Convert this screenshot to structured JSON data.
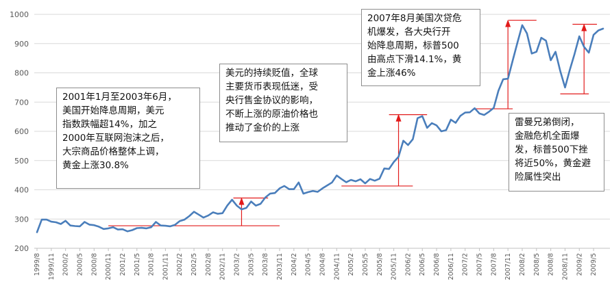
{
  "chart_data": {
    "type": "line",
    "ylim": [
      200,
      1000
    ],
    "yticks": [
      200,
      300,
      400,
      500,
      600,
      700,
      800,
      900,
      1000
    ],
    "grid": true,
    "series_color": "#4a7ebb",
    "annotation_color": "#e21a1a",
    "x_tick_labels": [
      "1999/8",
      "1999/11",
      "2000/2",
      "2000/5",
      "2000/8",
      "2000/11",
      "2001/2",
      "2001/5",
      "2001/8",
      "2001/11",
      "2002/2",
      "2002/5",
      "2002/8",
      "2002/11",
      "2003/2",
      "2003/5",
      "2003/8",
      "2003/11",
      "2004/2",
      "2004/5",
      "2004/8",
      "2004/11",
      "2005/2",
      "2005/5",
      "2005/8",
      "2005/11",
      "2006/2",
      "2006/5",
      "2006/8",
      "2006/11",
      "2007/2",
      "2007/5",
      "2007/8",
      "2007/11",
      "2008/2",
      "2008/5",
      "2008/8",
      "2008/11",
      "2009/2",
      "2009/5"
    ],
    "x": [
      "1999/8",
      "1999/9",
      "1999/10",
      "1999/11",
      "1999/12",
      "2000/1",
      "2000/2",
      "2000/3",
      "2000/4",
      "2000/5",
      "2000/6",
      "2000/7",
      "2000/8",
      "2000/9",
      "2000/10",
      "2000/11",
      "2000/12",
      "2001/1",
      "2001/2",
      "2001/3",
      "2001/4",
      "2001/5",
      "2001/6",
      "2001/7",
      "2001/8",
      "2001/9",
      "2001/10",
      "2001/11",
      "2001/12",
      "2002/1",
      "2002/2",
      "2002/3",
      "2002/4",
      "2002/5",
      "2002/6",
      "2002/7",
      "2002/8",
      "2002/9",
      "2002/10",
      "2002/11",
      "2002/12",
      "2003/1",
      "2003/2",
      "2003/3",
      "2003/4",
      "2003/5",
      "2003/6",
      "2003/7",
      "2003/8",
      "2003/9",
      "2003/10",
      "2003/11",
      "2003/12",
      "2004/1",
      "2004/2",
      "2004/3",
      "2004/4",
      "2004/5",
      "2004/6",
      "2004/7",
      "2004/8",
      "2004/9",
      "2004/10",
      "2004/11",
      "2004/12",
      "2005/1",
      "2005/2",
      "2005/3",
      "2005/4",
      "2005/5",
      "2005/6",
      "2005/7",
      "2005/8",
      "2005/9",
      "2005/10",
      "2005/11",
      "2005/12",
      "2006/1",
      "2006/2",
      "2006/3",
      "2006/4",
      "2006/5",
      "2006/6",
      "2006/7",
      "2006/8",
      "2006/9",
      "2006/10",
      "2006/11",
      "2006/12",
      "2007/1",
      "2007/2",
      "2007/3",
      "2007/4",
      "2007/5",
      "2007/6",
      "2007/7",
      "2007/8",
      "2007/9",
      "2007/10",
      "2007/11",
      "2007/12",
      "2008/1",
      "2008/2",
      "2008/3",
      "2008/4",
      "2008/5",
      "2008/6",
      "2008/7",
      "2008/8",
      "2008/9",
      "2008/10",
      "2008/11",
      "2008/12",
      "2009/1",
      "2009/2",
      "2009/3",
      "2009/4",
      "2009/5",
      "2009/6",
      "2009/7"
    ],
    "values": [
      255,
      298,
      298,
      291,
      289,
      283,
      294,
      278,
      276,
      275,
      290,
      281,
      279,
      274,
      266,
      268,
      272,
      264,
      265,
      258,
      262,
      269,
      270,
      268,
      272,
      290,
      278,
      277,
      275,
      280,
      293,
      298,
      310,
      325,
      315,
      305,
      312,
      323,
      318,
      320,
      346,
      366,
      346,
      333,
      338,
      360,
      346,
      352,
      374,
      387,
      389,
      405,
      413,
      402,
      402,
      425,
      387,
      392,
      396,
      393,
      405,
      415,
      425,
      449,
      437,
      426,
      434,
      429,
      436,
      422,
      437,
      431,
      438,
      473,
      471,
      495,
      513,
      568,
      553,
      573,
      645,
      652,
      612,
      628,
      620,
      600,
      604,
      640,
      629,
      653,
      664,
      665,
      679,
      661,
      656,
      667,
      680,
      739,
      778,
      780,
      842,
      904,
      963,
      935,
      866,
      872,
      920,
      910,
      843,
      872,
      806,
      750,
      810,
      865,
      925,
      889,
      869,
      930,
      945,
      951
    ]
  },
  "annotations": [
    "2001年1月至2003年6月，\n美国开始降息周期，美元\n指数跌幅超14%，加之\n2000年互联网泡沫之后，\n大宗商品价格整体上调，\n黄金上涨30.8%",
    "美元的持续贬值，全球\n主要货币表现低迷，受\n央行售金协议的影响，\n不断上涨的原油价格也\n推动了金价的上涨",
    "2007年8月美国次贷危\n机爆发，各大央行开\n始降息周期，标普500\n由高点下滑14.1%，黄\n金上涨46%",
    "雷曼兄弟倒闭，\n金融危机全面爆\n发，标普500下挫\n将近50%，黄金避\n险属性突出"
  ]
}
